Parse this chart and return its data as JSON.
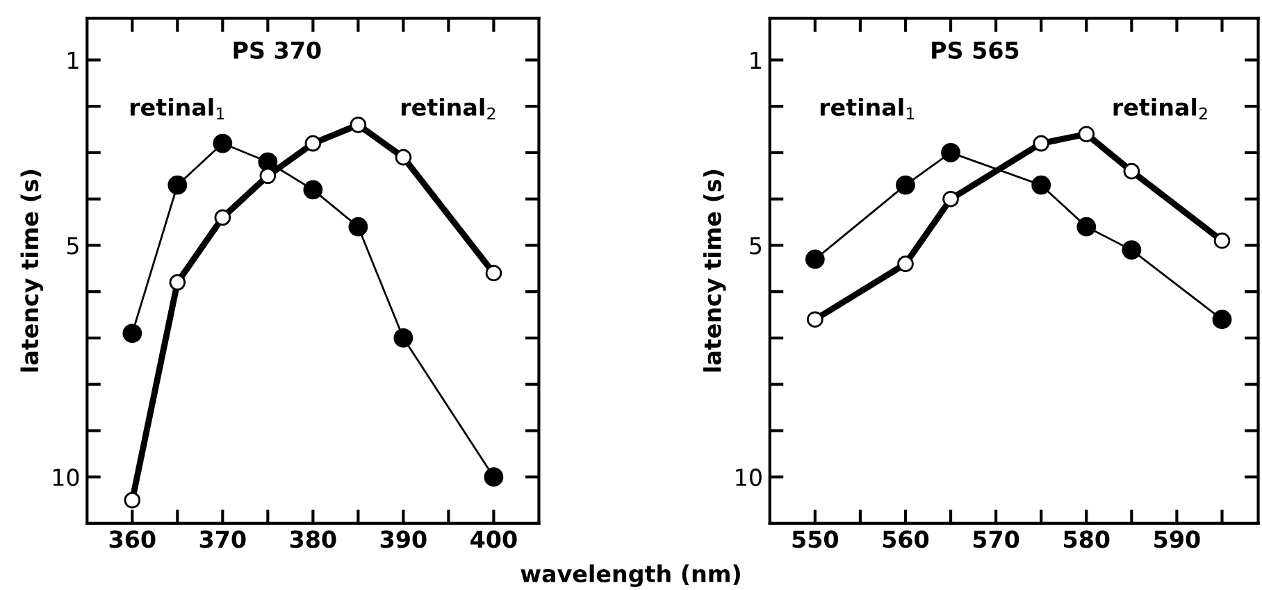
{
  "chart_data": [
    {
      "type": "line",
      "title": "PS 370",
      "xlabel": "wavelength (nm)",
      "ylabel": "latency time (s)",
      "xlim": [
        355,
        405
      ],
      "ylim": [
        11,
        0.1
      ],
      "xticks": [
        360,
        {
          "value": 365,
          "label": null
        },
        370,
        {
          "value": 375,
          "label": null
        },
        380,
        {
          "value": 385,
          "label": null
        },
        390,
        {
          "value": 395,
          "label": null
        },
        400
      ],
      "yticks": [
        1,
        {
          "value": 2,
          "label": null
        },
        {
          "value": 3,
          "label": null
        },
        {
          "value": 4,
          "label": null
        },
        5,
        {
          "value": 6,
          "label": null
        },
        {
          "value": 7,
          "label": null
        },
        {
          "value": 8,
          "label": null
        },
        {
          "value": 9,
          "label": null
        },
        10
      ],
      "marker": "circle",
      "line_style": "solid",
      "grid": false,
      "legend": "top",
      "series": [
        {
          "name": "retinal$_{1}$",
          "color": "#000000",
          "x": [
            360,
            365,
            370,
            375,
            380,
            385,
            390,
            400
          ],
          "values": [
            6.9,
            3.7,
            2.8,
            3.2,
            3.8,
            4.6,
            7.0,
            10.0
          ]
        },
        {
          "name": "retinal$_{2}$",
          "color": "#000000",
          "x": [
            360,
            365,
            370,
            375,
            380,
            385,
            390,
            400
          ],
          "values": [
            10.5,
            5.8,
            4.4,
            3.5,
            2.8,
            2.4,
            3.1,
            5.6
          ]
        }
      ]
    },
    {
      "type": "line",
      "title": "PS 565",
      "ylabel": "latency time (s)",
      "xlim": [
        545,
        599
      ],
      "ylim": [
        11,
        0.1
      ],
      "xticks": [
        550,
        {
          "value": 555,
          "label": null
        },
        560,
        {
          "value": 565,
          "label": null
        },
        570,
        {
          "value": 575,
          "label": null
        },
        580,
        {
          "value": 585,
          "label": null
        },
        590,
        {
          "value": 595,
          "label": null
        }
      ],
      "yticks": [
        1,
        {
          "value": 2,
          "label": null
        },
        {
          "value": 3,
          "label": null
        },
        {
          "value": 4,
          "label": null
        },
        5,
        {
          "value": 6,
          "label": null
        },
        {
          "value": 7,
          "label": null
        },
        {
          "value": 8,
          "label": null
        },
        {
          "value": 9,
          "label": null
        },
        10
      ],
      "marker": "circle",
      "line_style": "solid",
      "grid": false,
      "legend": "top",
      "series": [
        {
          "name": "retinal$_{1}$",
          "color": "#000000",
          "x": [
            550,
            560,
            565,
            575,
            580,
            585,
            595
          ],
          "values": [
            5.3,
            3.7,
            3.0,
            3.7,
            4.6,
            5.1,
            6.6
          ]
        },
        {
          "name": "retinal$_{2}$",
          "color": "#000000",
          "x": [
            550,
            560,
            565,
            575,
            580,
            585,
            595
          ],
          "values": [
            6.6,
            5.4,
            4.0,
            2.8,
            2.6,
            3.4,
            4.9
          ]
        }
      ]
    }
  ]
}
